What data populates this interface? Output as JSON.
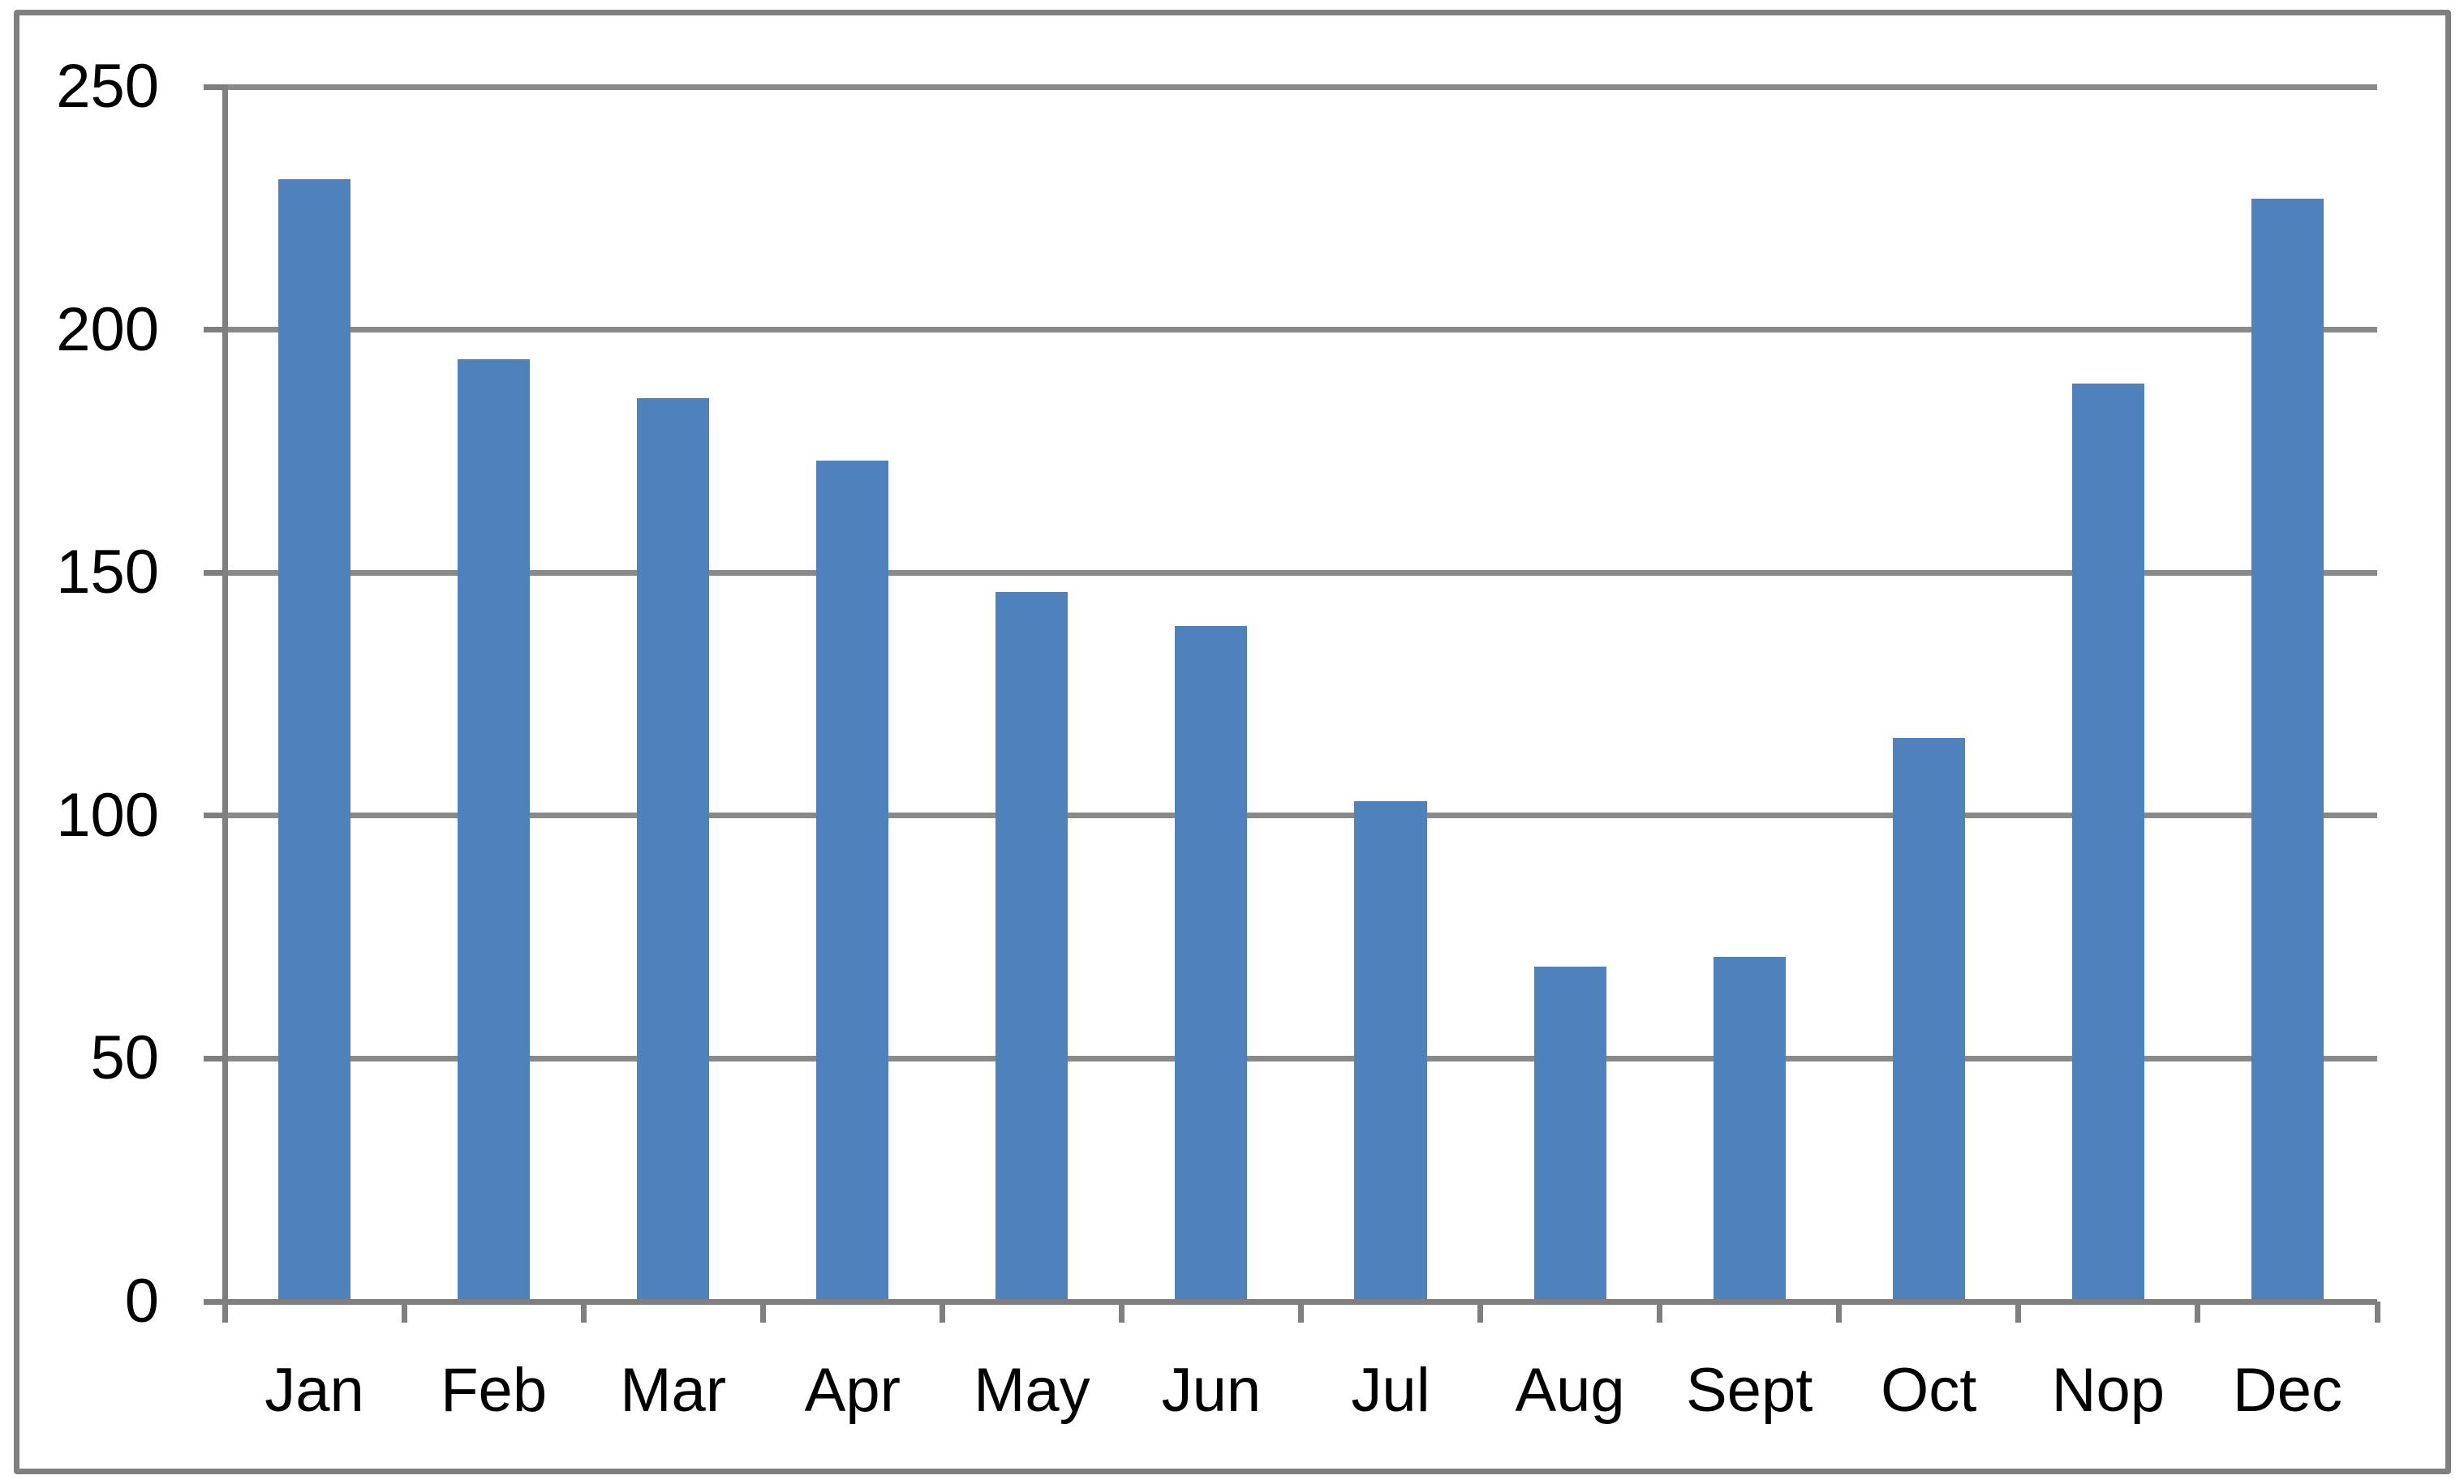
{
  "chart_data": {
    "type": "bar",
    "title": "",
    "xlabel": "",
    "ylabel": "",
    "categories": [
      "Jan",
      "Feb",
      "Mar",
      "Apr",
      "May",
      "Jun",
      "Jul",
      "Aug",
      "Sept",
      "Oct",
      "Nop",
      "Dec"
    ],
    "values": [
      231,
      194,
      186,
      173,
      146,
      139,
      103,
      69,
      71,
      116,
      189,
      227
    ],
    "ylim": [
      0,
      250
    ],
    "yticks": [
      0,
      50,
      100,
      150,
      200,
      250
    ],
    "ytick_labels": [
      "0",
      "50",
      "100",
      "150",
      "200",
      "250"
    ],
    "grid": "horizontal",
    "legend": "none",
    "colors": {
      "bar": "#4F81BD",
      "gridline": "#898989",
      "axis": "#7F7F7F",
      "frame_border": "#7F7F7F",
      "background": "#FFFFFF",
      "text": "#000000"
    }
  }
}
